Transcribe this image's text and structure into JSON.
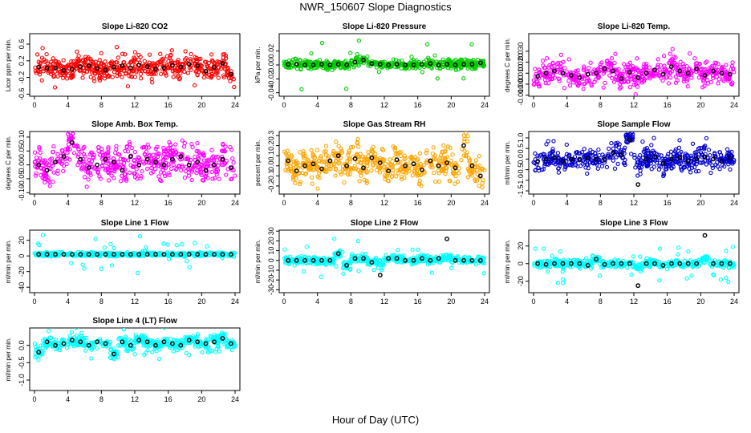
{
  "figure": {
    "title": "NWR_150607  Slope Diagnostics",
    "xlabel": "Hour of Day (UTC)"
  },
  "chart_data": [
    {
      "type": "scatter",
      "title": "Slope Li-820 CO2",
      "ylabel": "Licor ppm per min.",
      "xlim": [
        0,
        24
      ],
      "ylim": [
        -0.65,
        0.85
      ],
      "xticks": [
        0,
        4,
        8,
        12,
        16,
        20,
        24
      ],
      "yticks": [
        -0.6,
        -0.2,
        0.2,
        0.6
      ],
      "ytick_labels": [
        "-0.6",
        "-0.2",
        "0.2",
        "0.6"
      ],
      "colors": {
        "points": "#ff0000",
        "hourly": "#000000"
      },
      "spread": 0.16,
      "outlier": 0.55,
      "hourly": [
        0.05,
        0.02,
        0.03,
        -0.03,
        0.0,
        0.06,
        0.08,
        0.02,
        -0.02,
        0.05,
        0.08,
        0.03,
        0.1,
        0.06,
        0.0,
        0.03,
        0.09,
        0.05,
        0.12,
        0.08,
        -0.05,
        0.04,
        0.14,
        -0.12
      ]
    },
    {
      "type": "scatter",
      "title": "Slope Li-820 Pressure",
      "ylabel": "kPa per min.",
      "xlim": [
        0,
        24
      ],
      "ylim": [
        -0.045,
        0.045
      ],
      "xticks": [
        0,
        4,
        8,
        12,
        16,
        20,
        24
      ],
      "yticks": [
        -0.04,
        -0.02,
        0.0,
        0.02
      ],
      "ytick_labels": [
        "-0.04",
        "-0.02",
        "0.00",
        "0.02"
      ],
      "colors": {
        "points": "#00cc00",
        "hourly": "#000000"
      },
      "spread": 0.004,
      "outlier": 0.035,
      "hourly": [
        0.001,
        0.001,
        0.0,
        0.0,
        0.001,
        0.0,
        0.001,
        0.0,
        0.004,
        0.007,
        0.002,
        0.001,
        0.0,
        0.001,
        0.0,
        0.0,
        0.001,
        0.002,
        0.0,
        0.001,
        0.0,
        0.001,
        0.001,
        0.003
      ]
    },
    {
      "type": "scatter",
      "title": "Slope Li-820 Temp.",
      "ylabel": "degrees C per min.",
      "xlim": [
        0,
        24
      ],
      "ylim": [
        -0.011,
        0.046
      ],
      "xticks": [
        0,
        4,
        8,
        12,
        16,
        20,
        24
      ],
      "yticks": [
        -0.01,
        0.0,
        0.01,
        0.02,
        0.03
      ],
      "ytick_labels": [
        "-0.010",
        "0.000",
        "0.010",
        "0.020",
        "0.030"
      ],
      "colors": {
        "points": "#ff00ff",
        "hourly": "#000000"
      },
      "spread": 0.006,
      "outlier": 0.018,
      "hourly": [
        0.007,
        0.01,
        0.012,
        0.01,
        0.008,
        0.006,
        0.009,
        0.01,
        0.014,
        0.012,
        0.005,
        0.011,
        0.006,
        0.01,
        0.013,
        0.009,
        0.016,
        0.012,
        0.01,
        0.014,
        0.008,
        0.012,
        0.01,
        0.009
      ]
    },
    {
      "type": "scatter",
      "title": "Slope Amb. Box Temp.",
      "ylabel": "degrees C per min.",
      "xlim": [
        0,
        24
      ],
      "ylim": [
        -0.105,
        0.12
      ],
      "xticks": [
        0,
        4,
        8,
        12,
        16,
        20,
        24
      ],
      "yticks": [
        -0.1,
        -0.05,
        0.0,
        0.05,
        0.1
      ],
      "ytick_labels": [
        "-0.10",
        "-0.05",
        "0.00",
        "0.05",
        "0.10"
      ],
      "colors": {
        "points": "#ff00ff",
        "hourly": "#000000"
      },
      "spread": 0.035,
      "outlier": 0.07,
      "hourly": [
        0.0,
        -0.02,
        0.01,
        0.03,
        0.08,
        0.02,
        -0.01,
        0.0,
        0.02,
        0.01,
        -0.02,
        0.03,
        0.0,
        0.02,
        0.01,
        0.0,
        0.02,
        0.03,
        0.0,
        0.01,
        -0.02,
        0.0,
        0.02,
        -0.01
      ]
    },
    {
      "type": "scatter",
      "title": "Slope Gas Stream RH",
      "ylabel": "percent per min.",
      "xlim": [
        0,
        24
      ],
      "ylim": [
        -0.28,
        0.34
      ],
      "xticks": [
        0,
        4,
        8,
        12,
        16,
        20,
        24
      ],
      "yticks": [
        -0.2,
        -0.1,
        0.0,
        0.1,
        0.2,
        0.3
      ],
      "ytick_labels": [
        "-0.2",
        "-0.1",
        "0.0",
        "0.1",
        "0.2",
        "0.3"
      ],
      "colors": {
        "points": "#ffa500",
        "hourly": "#000000"
      },
      "spread": 0.09,
      "outlier": 0.2,
      "hourly": [
        0.05,
        -0.05,
        0.0,
        0.02,
        -0.03,
        0.05,
        0.1,
        0.0,
        0.07,
        -0.02,
        0.08,
        0.03,
        -0.05,
        0.06,
        0.0,
        0.02,
        -0.04,
        0.05,
        0.0,
        0.03,
        -0.02,
        0.2,
        0.0,
        -0.1
      ]
    },
    {
      "type": "scatter",
      "title": "Slope Sample Flow",
      "ylabel": "ml/min per min.",
      "xlim": [
        0,
        24
      ],
      "ylim": [
        -1.65,
        1.3
      ],
      "xticks": [
        0,
        4,
        8,
        12,
        16,
        20,
        24
      ],
      "yticks": [
        -1.5,
        -1.0,
        -0.5,
        0.0,
        0.5,
        1.0
      ],
      "ytick_labels": [
        "-1.5",
        "-1.0",
        "-0.5",
        "0.0",
        "0.5",
        "1.0"
      ],
      "colors": {
        "points": "#0000cc",
        "hourly": "#000000"
      },
      "spread": 0.28,
      "outlier": 0.9,
      "hourly": [
        -0.1,
        0.0,
        0.05,
        -0.1,
        0.0,
        0.0,
        0.05,
        0.0,
        0.0,
        0.3,
        0.2,
        0.9,
        -1.2,
        0.0,
        0.1,
        -0.2,
        0.0,
        0.05,
        -0.1,
        0.0,
        0.1,
        0.0,
        -0.1,
        0.05
      ]
    },
    {
      "type": "scatter",
      "title": "Slope Line 1 Flow",
      "ylabel": "ml/min per min.",
      "xlim": [
        0,
        24
      ],
      "ylim": [
        -47,
        33
      ],
      "xticks": [
        0,
        4,
        8,
        12,
        16,
        20,
        24
      ],
      "yticks": [
        -40,
        -20,
        0,
        20
      ],
      "ytick_labels": [
        "-40",
        "-20",
        "0",
        "20"
      ],
      "colors": {
        "points": "#00ffff",
        "hourly": "#000000"
      },
      "spread": 1.5,
      "outlier": 25,
      "hourly": [
        2,
        2,
        2,
        2,
        2,
        2,
        2,
        2,
        2,
        2,
        2,
        2,
        2,
        2,
        2,
        2,
        2,
        2,
        2,
        2,
        2,
        2,
        2,
        2
      ]
    },
    {
      "type": "scatter",
      "title": "Slope Line 2 Flow",
      "ylabel": "ml/min per min.",
      "xlim": [
        0,
        24
      ],
      "ylim": [
        -33,
        31
      ],
      "xticks": [
        0,
        4,
        8,
        12,
        16,
        20,
        24
      ],
      "yticks": [
        -30,
        -20,
        -10,
        0,
        10,
        20,
        30
      ],
      "ytick_labels": [
        "-30",
        "-20",
        "-10",
        "0",
        "10",
        "20",
        "30"
      ],
      "colors": {
        "points": "#00ffff",
        "hourly": "#000000"
      },
      "spread": 2.5,
      "outlier": 18,
      "hourly": [
        0,
        0,
        0,
        0,
        0,
        0,
        7,
        -5,
        2,
        2,
        -2,
        -15,
        2,
        2,
        0,
        0,
        2,
        0,
        2,
        22,
        0,
        0,
        0,
        0
      ]
    },
    {
      "type": "scatter",
      "title": "Slope Line 3 Flow",
      "ylabel": "ml/min per min.",
      "xlim": [
        0,
        24
      ],
      "ylim": [
        -33,
        38
      ],
      "xticks": [
        0,
        4,
        8,
        12,
        16,
        20,
        24
      ],
      "yticks": [
        -20,
        0,
        20
      ],
      "ytick_labels": [
        "-20",
        "0",
        "20"
      ],
      "colors": {
        "points": "#00ffff",
        "hourly": "#000000"
      },
      "spread": 2.5,
      "outlier": 22,
      "hourly": [
        0,
        -1,
        0,
        0,
        0,
        0,
        -2,
        5,
        -1,
        0,
        0,
        0,
        -25,
        0,
        0,
        -2,
        0,
        0,
        0,
        0,
        32,
        0,
        0,
        0
      ]
    },
    {
      "type": "scatter",
      "title": "Slope Line 4 (LT) Flow",
      "ylabel": "ml/min per min.",
      "xlim": [
        0,
        24
      ],
      "ylim": [
        -1.3,
        0.5
      ],
      "xticks": [
        0,
        4,
        8,
        12,
        16,
        20,
        24
      ],
      "yticks": [
        -1.0,
        -0.5,
        0.0
      ],
      "ytick_labels": [
        "-1.0",
        "-0.5",
        "0.0"
      ],
      "colors": {
        "points": "#00ffff",
        "hourly": "#000000"
      },
      "spread": 0.1,
      "outlier": 0.45,
      "hourly": [
        -0.2,
        0.1,
        0.0,
        0.05,
        0.15,
        0.1,
        0.0,
        0.1,
        0.05,
        -0.25,
        0.1,
        0.0,
        0.15,
        0.1,
        0.0,
        0.1,
        0.05,
        0.0,
        0.15,
        0.1,
        0.05,
        0.1,
        0.2,
        0.05
      ]
    }
  ]
}
